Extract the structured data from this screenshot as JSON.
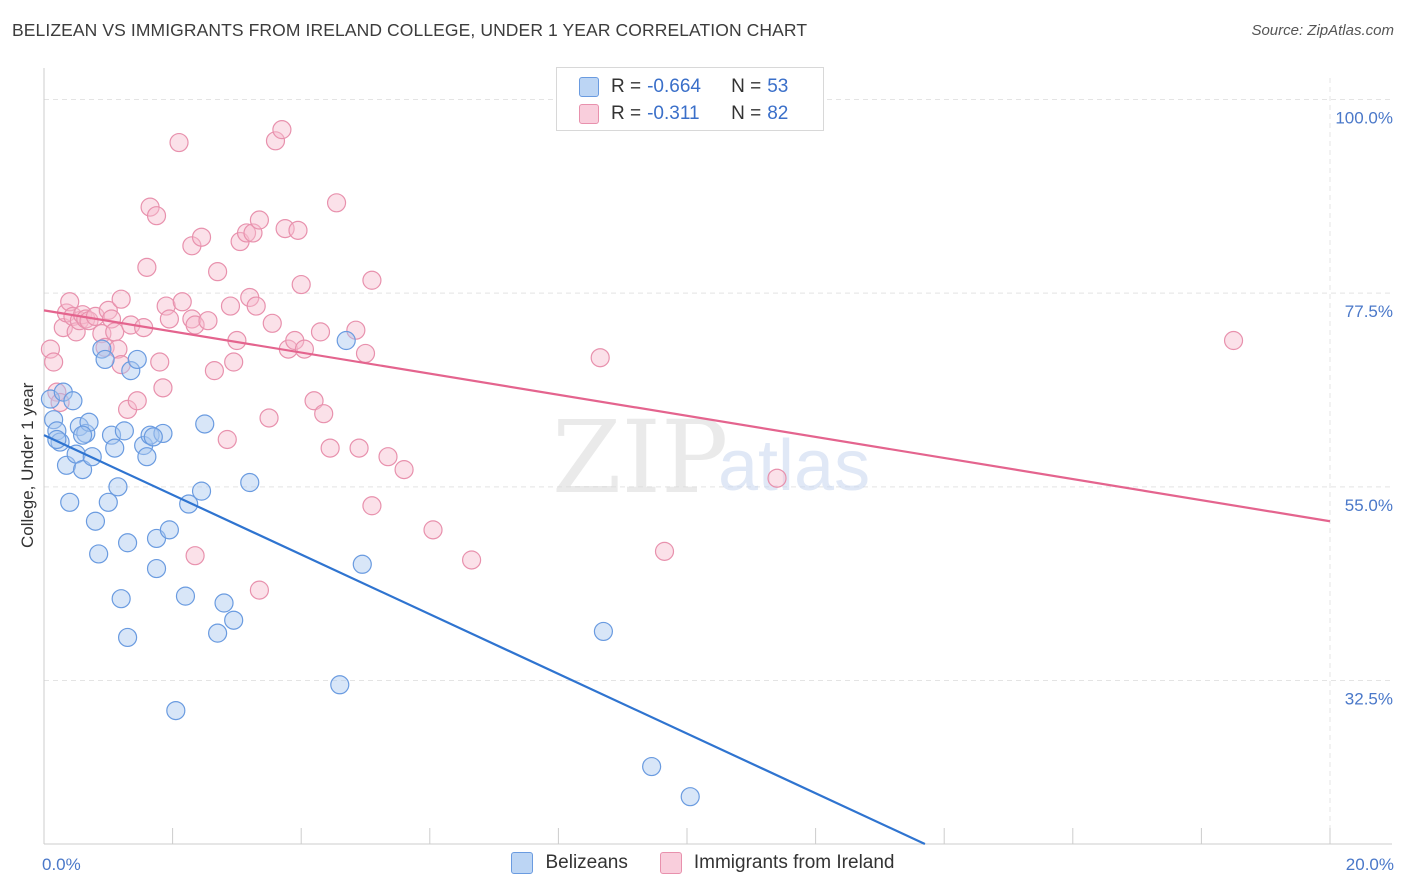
{
  "title": "BELIZEAN VS IMMIGRANTS FROM IRELAND COLLEGE, UNDER 1 YEAR CORRELATION CHART",
  "source": "Source: ZipAtlas.com",
  "watermark": {
    "zip": "ZIP",
    "atlas": "atlas"
  },
  "colors": {
    "blue_fill": "#a9c8f0",
    "blue_stroke": "#6a9be0",
    "blue_line": "#2f74d0",
    "pink_fill": "#f6bccf",
    "pink_stroke": "#e891ad",
    "pink_line": "#e4648e",
    "grid": "#e4e4e4",
    "tick_label": "#4a78c9"
  },
  "legend": {
    "rows": [
      {
        "r_label": "R =",
        "r_value": "-0.664",
        "n_label": "N =",
        "n_value": "53",
        "series": "blue"
      },
      {
        "r_label": "R =",
        "r_value": "-0.311",
        "n_label": "N =",
        "n_value": "82",
        "series": "pink"
      }
    ]
  },
  "bottom_legend": [
    {
      "label": "Belizeans",
      "series": "blue"
    },
    {
      "label": "Immigrants from Ireland",
      "series": "pink"
    }
  ],
  "chart_data": {
    "type": "scatter",
    "xlabel": "",
    "ylabel": "College, Under 1 year",
    "xlim": [
      0,
      20
    ],
    "ylim": [
      13.5,
      102.5
    ],
    "x_tick_labels": [
      {
        "value": 0,
        "label": "0.0%"
      },
      {
        "value": 20,
        "label": "20.0%"
      }
    ],
    "x_minor_ticks": [
      2,
      4,
      6,
      8,
      10,
      12,
      14,
      16,
      18
    ],
    "y_ticks": [
      {
        "value": 100,
        "label": "100.0%"
      },
      {
        "value": 77.5,
        "label": "77.5%"
      },
      {
        "value": 55,
        "label": "55.0%"
      },
      {
        "value": 32.5,
        "label": "32.5%"
      }
    ],
    "series": [
      {
        "name": "Belizeans",
        "color": "blue",
        "trend": {
          "x": [
            0,
            13.7
          ],
          "y": [
            61.0,
            13.5
          ]
        },
        "points": [
          [
            0.1,
            65.2
          ],
          [
            0.15,
            62.8
          ],
          [
            0.2,
            61.5
          ],
          [
            0.25,
            60.2
          ],
          [
            0.3,
            66.0
          ],
          [
            0.35,
            57.5
          ],
          [
            0.4,
            53.2
          ],
          [
            0.45,
            65.0
          ],
          [
            0.5,
            58.8
          ],
          [
            0.55,
            62.0
          ],
          [
            0.6,
            57.0
          ],
          [
            0.65,
            61.2
          ],
          [
            0.7,
            62.5
          ],
          [
            0.75,
            58.5
          ],
          [
            0.8,
            51.0
          ],
          [
            0.85,
            47.2
          ],
          [
            0.9,
            71.0
          ],
          [
            0.95,
            69.8
          ],
          [
            1.0,
            53.2
          ],
          [
            1.05,
            61.0
          ],
          [
            1.1,
            59.5
          ],
          [
            1.15,
            55.0
          ],
          [
            1.2,
            42.0
          ],
          [
            1.25,
            61.5
          ],
          [
            1.3,
            37.5
          ],
          [
            1.3,
            48.5
          ],
          [
            1.35,
            68.5
          ],
          [
            1.45,
            69.8
          ],
          [
            1.55,
            59.8
          ],
          [
            1.6,
            58.5
          ],
          [
            1.65,
            61.0
          ],
          [
            1.75,
            49.0
          ],
          [
            1.75,
            45.5
          ],
          [
            1.85,
            61.2
          ],
          [
            1.95,
            50.0
          ],
          [
            2.05,
            29.0
          ],
          [
            2.2,
            42.3
          ],
          [
            2.25,
            53.0
          ],
          [
            2.45,
            54.5
          ],
          [
            2.5,
            62.3
          ],
          [
            2.7,
            38.0
          ],
          [
            2.8,
            41.5
          ],
          [
            2.95,
            39.5
          ],
          [
            3.2,
            55.5
          ],
          [
            4.6,
            32.0
          ],
          [
            4.7,
            72.0
          ],
          [
            4.95,
            46.0
          ],
          [
            8.7,
            38.2
          ],
          [
            9.45,
            22.5
          ],
          [
            10.05,
            19.0
          ],
          [
            1.7,
            60.8
          ],
          [
            0.6,
            61.0
          ],
          [
            0.2,
            60.5
          ]
        ]
      },
      {
        "name": "Immigrants from Ireland",
        "color": "pink",
        "trend": {
          "x": [
            0,
            20
          ],
          "y": [
            75.5,
            51.0
          ]
        },
        "points": [
          [
            0.1,
            71.0
          ],
          [
            0.15,
            69.5
          ],
          [
            0.2,
            66.0
          ],
          [
            0.25,
            64.8
          ],
          [
            0.3,
            73.5
          ],
          [
            0.35,
            75.2
          ],
          [
            0.4,
            76.5
          ],
          [
            0.45,
            74.8
          ],
          [
            0.5,
            73.0
          ],
          [
            0.55,
            74.3
          ],
          [
            0.6,
            75.0
          ],
          [
            0.65,
            74.5
          ],
          [
            0.7,
            74.3
          ],
          [
            0.8,
            74.8
          ],
          [
            0.9,
            72.8
          ],
          [
            0.95,
            71.2
          ],
          [
            1.0,
            75.5
          ],
          [
            1.05,
            74.5
          ],
          [
            1.1,
            73.0
          ],
          [
            1.15,
            71.0
          ],
          [
            1.2,
            69.2
          ],
          [
            1.2,
            76.8
          ],
          [
            1.3,
            64.0
          ],
          [
            1.35,
            73.8
          ],
          [
            1.45,
            65.0
          ],
          [
            1.55,
            73.5
          ],
          [
            1.6,
            80.5
          ],
          [
            1.65,
            87.5
          ],
          [
            1.75,
            86.5
          ],
          [
            1.8,
            69.5
          ],
          [
            1.85,
            66.5
          ],
          [
            1.9,
            76.0
          ],
          [
            1.95,
            74.5
          ],
          [
            2.1,
            95.0
          ],
          [
            2.15,
            76.5
          ],
          [
            2.3,
            83.0
          ],
          [
            2.3,
            74.5
          ],
          [
            2.35,
            73.8
          ],
          [
            2.45,
            84.0
          ],
          [
            2.55,
            74.3
          ],
          [
            2.65,
            68.5
          ],
          [
            2.7,
            80.0
          ],
          [
            2.85,
            60.5
          ],
          [
            2.9,
            76.0
          ],
          [
            2.95,
            69.5
          ],
          [
            3.0,
            72.0
          ],
          [
            3.05,
            83.5
          ],
          [
            3.15,
            84.5
          ],
          [
            3.2,
            77.0
          ],
          [
            3.25,
            84.5
          ],
          [
            3.3,
            76.0
          ],
          [
            3.35,
            86.0
          ],
          [
            3.5,
            63.0
          ],
          [
            3.55,
            74.0
          ],
          [
            3.6,
            95.2
          ],
          [
            3.7,
            96.5
          ],
          [
            3.75,
            85.0
          ],
          [
            3.8,
            71.0
          ],
          [
            3.9,
            72.0
          ],
          [
            3.95,
            84.8
          ],
          [
            4.0,
            78.5
          ],
          [
            4.05,
            71.0
          ],
          [
            4.2,
            65.0
          ],
          [
            4.3,
            73.0
          ],
          [
            4.35,
            63.5
          ],
          [
            4.45,
            59.5
          ],
          [
            4.55,
            88.0
          ],
          [
            4.85,
            73.2
          ],
          [
            4.9,
            59.5
          ],
          [
            5.0,
            70.5
          ],
          [
            5.1,
            79.0
          ],
          [
            5.1,
            52.8
          ],
          [
            5.35,
            58.5
          ],
          [
            5.6,
            57.0
          ],
          [
            6.05,
            50.0
          ],
          [
            6.65,
            46.5
          ],
          [
            3.35,
            43.0
          ],
          [
            2.35,
            47.0
          ],
          [
            8.65,
            70.0
          ],
          [
            9.65,
            47.5
          ],
          [
            11.4,
            56.0
          ],
          [
            18.5,
            72.0
          ]
        ]
      }
    ]
  }
}
